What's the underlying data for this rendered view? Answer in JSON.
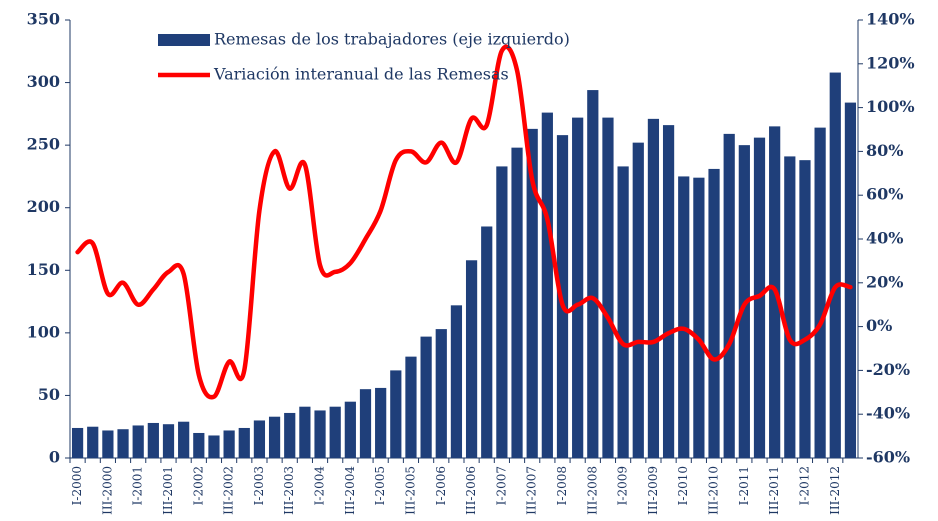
{
  "chart_data": {
    "type": "bar",
    "categories": [
      "I-2000",
      null,
      "III-2000",
      null,
      "I-2001",
      null,
      "III-2001",
      null,
      "I-2002",
      null,
      "III-2002",
      null,
      "I-2003",
      null,
      "III-2003",
      null,
      "I-2004",
      null,
      "III-2004",
      null,
      "I-2005",
      null,
      "III-2005",
      null,
      "I-2006",
      null,
      "III-2006",
      null,
      "I-2007",
      null,
      "III-2007",
      null,
      "I-2008",
      null,
      "III-2008",
      null,
      "I-2009",
      null,
      "III-2009",
      null,
      "I-2010",
      null,
      "III-2010",
      null,
      "I-2011",
      null,
      "III-2011",
      null,
      "I-2012",
      null,
      "III-2012",
      null
    ],
    "series": [
      {
        "name": "Remesas de los trabajadores (eje izquierdo)",
        "type": "bar",
        "color": "#1f3f7a",
        "values": [
          24,
          25,
          22,
          23,
          26,
          28,
          27,
          29,
          20,
          18,
          22,
          24,
          30,
          33,
          36,
          41,
          38,
          41,
          45,
          55,
          56,
          70,
          81,
          97,
          103,
          122,
          158,
          185,
          233,
          248,
          263,
          276,
          258,
          272,
          294,
          272,
          233,
          252,
          271,
          266,
          225,
          224,
          231,
          259,
          250,
          256,
          265,
          241,
          238,
          264,
          308,
          284
        ]
      },
      {
        "name": "Variación interanual de las Remesas",
        "type": "line",
        "axis": "y2",
        "color": "#ff0000",
        "values": [
          34,
          38,
          15,
          20,
          10,
          17,
          25,
          24,
          -22,
          -32,
          -16,
          -20,
          53,
          80,
          63,
          74,
          28,
          25,
          29,
          40,
          53,
          76,
          80,
          75,
          84,
          75,
          95,
          92,
          126,
          117,
          67,
          49,
          10,
          10,
          13,
          4,
          -8,
          -7,
          -7,
          -3,
          -1,
          -6,
          -15,
          -8,
          10,
          14,
          17,
          -6,
          -6,
          1,
          18,
          18
        ]
      }
    ],
    "ylim": [
      0,
      350
    ],
    "yticks": [
      0,
      50,
      100,
      150,
      200,
      250,
      300,
      350
    ],
    "y2lim": [
      -60,
      140
    ],
    "y2ticks": [
      {
        "value": -60,
        "label": "-60%"
      },
      {
        "value": -40,
        "label": "-40%"
      },
      {
        "value": -20,
        "label": "-20%"
      },
      {
        "value": 0,
        "label": "0%"
      },
      {
        "value": 20,
        "label": "20%"
      },
      {
        "value": 40,
        "label": "40%"
      },
      {
        "value": 60,
        "label": "60%"
      },
      {
        "value": 80,
        "label": "80%"
      },
      {
        "value": 100,
        "label": "100%"
      },
      {
        "value": 120,
        "label": "120%"
      },
      {
        "value": 140,
        "label": "140%"
      }
    ],
    "grid": false,
    "legend": "top"
  }
}
